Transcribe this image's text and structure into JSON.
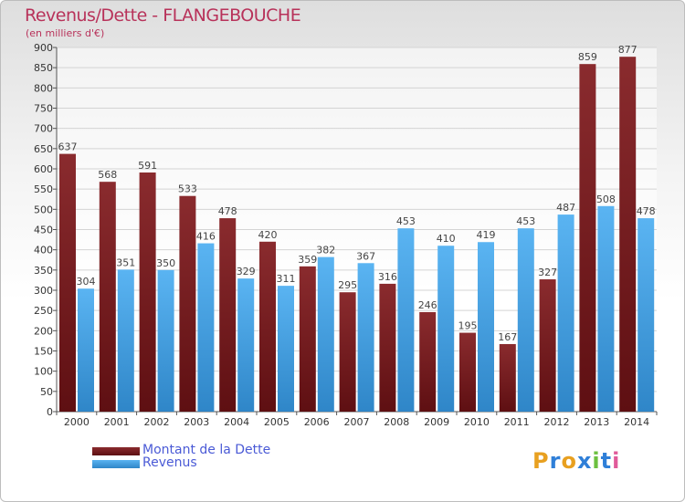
{
  "chart_data": {
    "type": "bar",
    "title": "Revenus/Dette - FLANGEBOUCHE",
    "subtitle": "(en milliers d'€)",
    "categories": [
      "2000",
      "2001",
      "2002",
      "2003",
      "2004",
      "2005",
      "2006",
      "2007",
      "2008",
      "2009",
      "2010",
      "2011",
      "2012",
      "2013",
      "2014"
    ],
    "series": [
      {
        "name": "Montant de la Dette",
        "color": "#7a1e22",
        "values": [
          637,
          568,
          591,
          533,
          478,
          420,
          359,
          295,
          316,
          246,
          195,
          167,
          327,
          859,
          877
        ]
      },
      {
        "name": "Revenus",
        "color": "#4aa3e8",
        "values": [
          304,
          351,
          350,
          416,
          329,
          311,
          382,
          367,
          453,
          410,
          419,
          453,
          487,
          508,
          478
        ]
      }
    ],
    "ylim": [
      0,
      900
    ],
    "ytick_step": 50,
    "grid": true,
    "legend_position": "bottom-left",
    "data_labels": true
  },
  "logo": {
    "text": "Proxiti",
    "letters": [
      "P",
      "r",
      "o",
      "x",
      "i",
      "t",
      "i"
    ],
    "colors": [
      "#e8a020",
      "#2f7fd8",
      "#e8a020",
      "#2f7fd8",
      "#6cc040",
      "#2f7fd8",
      "#e05a9a"
    ]
  }
}
